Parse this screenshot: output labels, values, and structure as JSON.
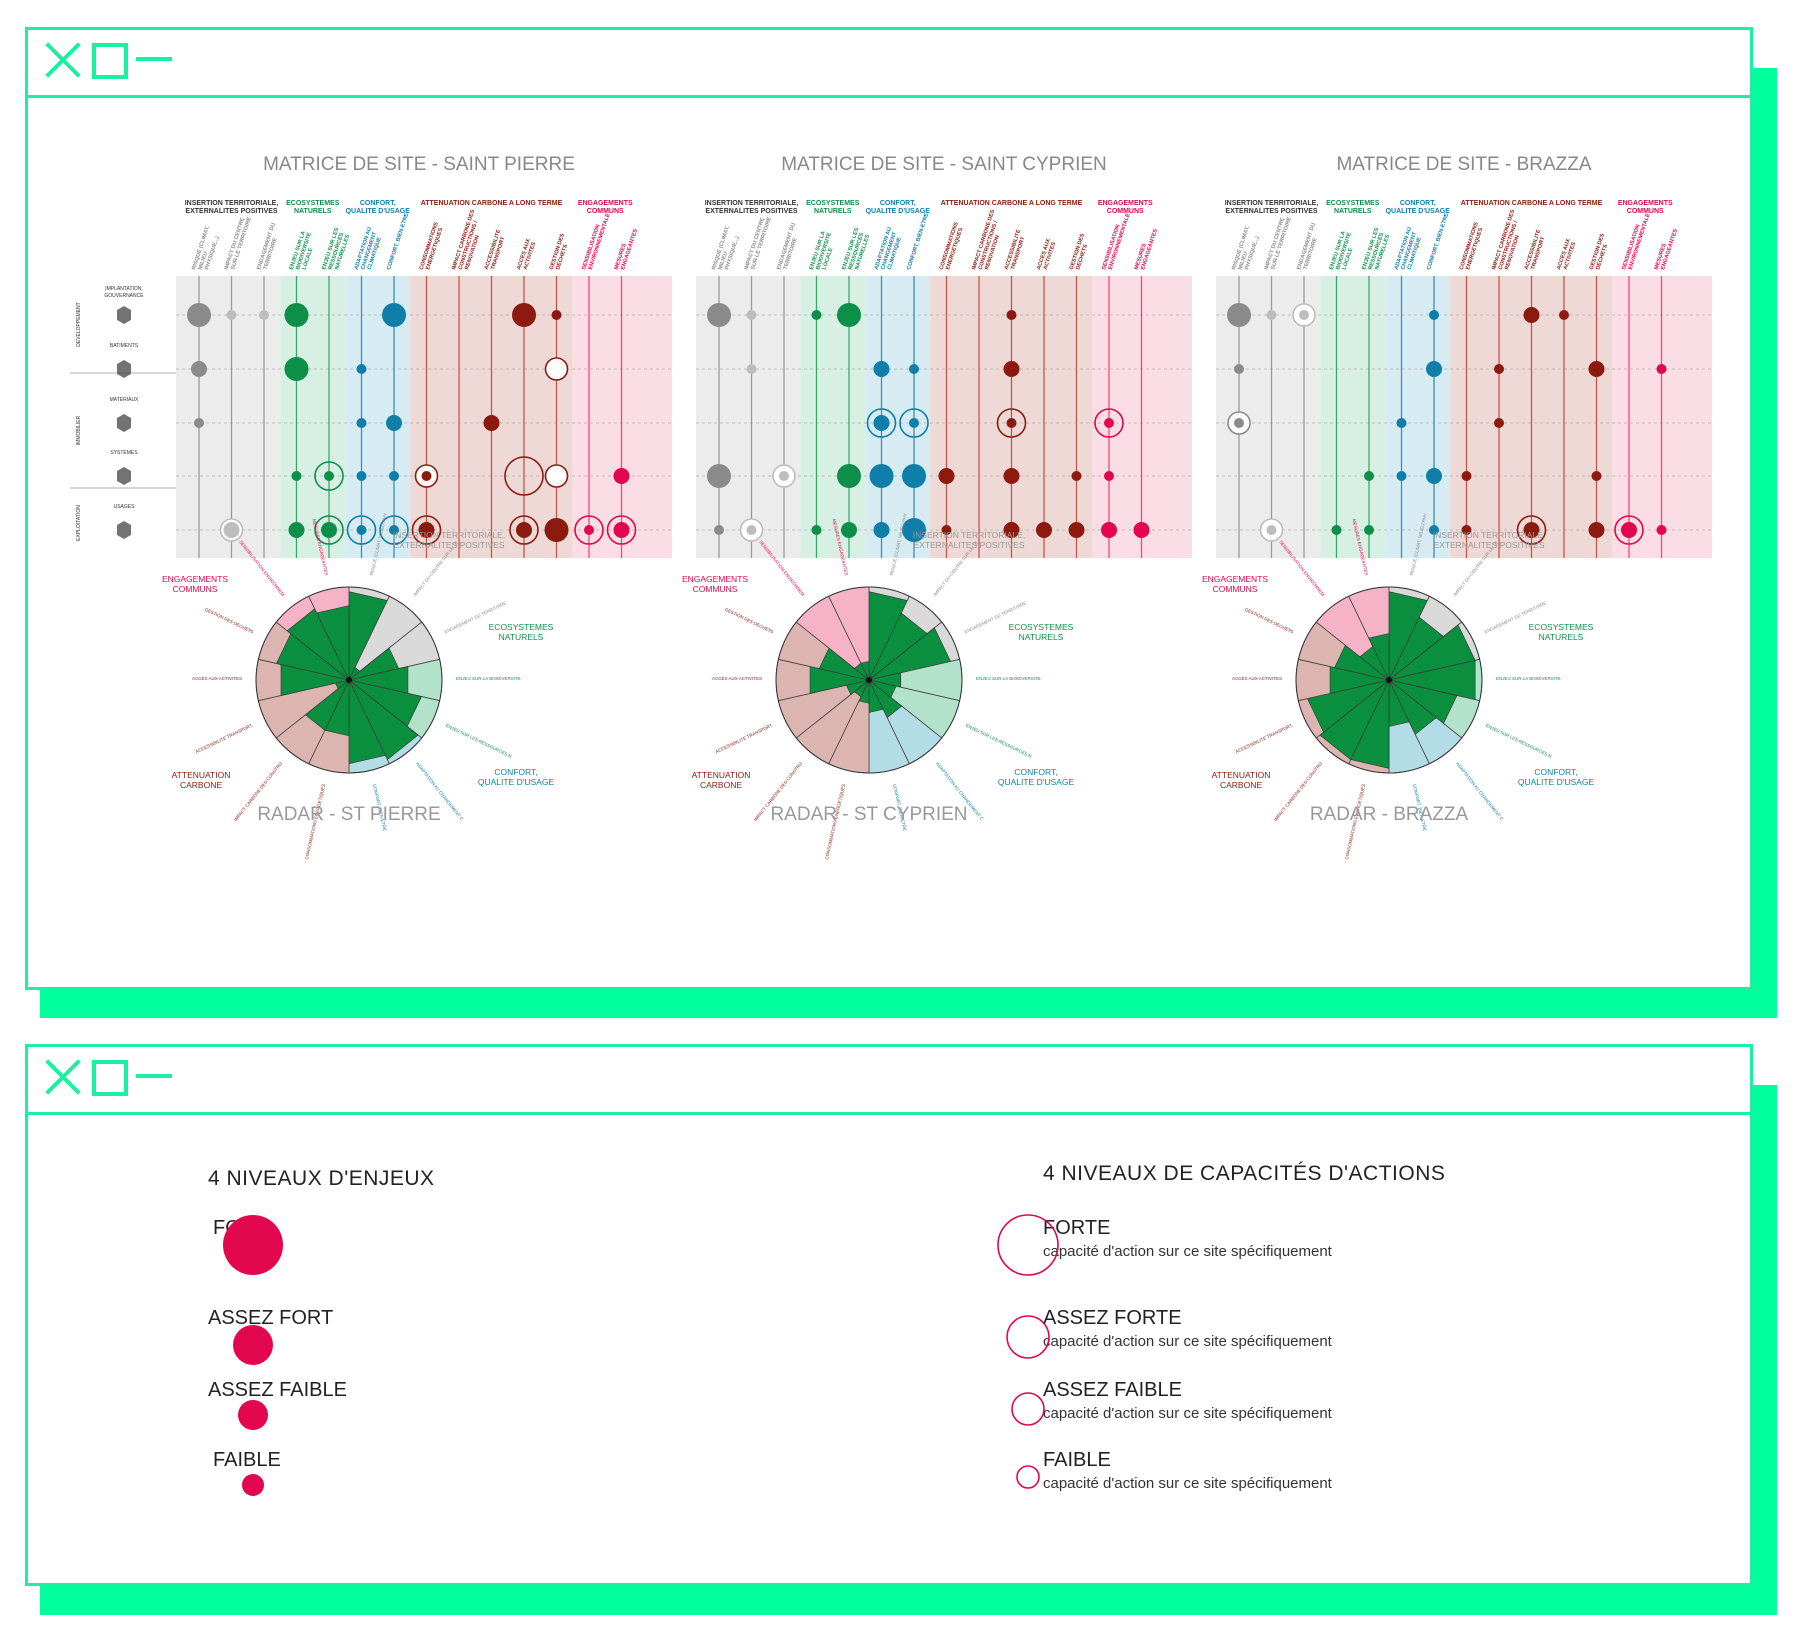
{
  "colors": {
    "accent": "#19f0a0",
    "grey": "#8a8a8a",
    "lightgrey": "#bdbdbd",
    "green": "#0d8f49",
    "blue": "#0f7ea8",
    "darkred": "#8c1a0f",
    "red": "#e2064f",
    "bg_grey": "#ececec",
    "bg_green": "#d8efe3",
    "bg_blue": "#d6ecf2",
    "bg_red": "#eed9d6",
    "bg_pink": "#fbdde6",
    "legend": "#e2064f"
  },
  "windows": [
    {
      "name": "window-matrices",
      "icons": [
        "close-icon",
        "maximize-icon",
        "minimize-icon"
      ]
    },
    {
      "name": "window-legend",
      "icons": [
        "close-icon",
        "maximize-icon",
        "minimize-icon"
      ]
    }
  ],
  "categories": [
    {
      "label": "INSERTION TERRITORIALE,\nEXTERNALITES POSITIVES",
      "color": "#333333"
    },
    {
      "label": "ECOSYSTEMES\nNATURELS",
      "color": "#0d8f49"
    },
    {
      "label": "CONFORT,\nQUALITE D'USAGE",
      "color": "#0f7ea8"
    },
    {
      "label": "ATTENUATION CARBONE A LONG TERME",
      "color": "#8c1a0f"
    },
    {
      "label": "ENGAGEMENTS\nCOMMUNS",
      "color": "#e2064f"
    }
  ],
  "columns": [
    {
      "label": "RISQUE (CLIMAT, MILIEU PHYSIQUE...)",
      "cat": 0
    },
    {
      "label": "IMPACT DU CENTRE SUR LE TERRITOIRE",
      "cat": 0
    },
    {
      "label": "ENGAGEMENT DU TERRITOIRE",
      "cat": 0
    },
    {
      "label": "ENJEU SUR LA BIODIVERSITE LOCALE",
      "cat": 1
    },
    {
      "label": "ENJEU SUR LES RESSOURCES NATURELLES",
      "cat": 1
    },
    {
      "label": "ADAPTATION AU CHANGEMENT CLIMATIQUE",
      "cat": 2
    },
    {
      "label": "CONFORT, BIEN-ETRE",
      "cat": 2
    },
    {
      "label": "CONSOMMATIONS ENERGETIQUES",
      "cat": 3
    },
    {
      "label": "IMPACT CARBONE DES CONSTRUCTIONS / RENOVATION",
      "cat": 3
    },
    {
      "label": "ACCESSIBILITE TRANSPORT",
      "cat": 3
    },
    {
      "label": "ACCES AUX ACTIVITES",
      "cat": 3
    },
    {
      "label": "GESTION DES DECHETS",
      "cat": 3
    },
    {
      "label": "SENSIBILISATION ENVIRONNEMENTALE",
      "cat": 4
    },
    {
      "label": "MESURES ENGAGEANTES",
      "cat": 4
    }
  ],
  "row_groups": [
    {
      "label": "DEVELOPPEMENT",
      "rows": [
        0
      ]
    },
    {
      "label": "IMMOBILIER",
      "rows": [
        1,
        2,
        3
      ]
    },
    {
      "label": "EXPLOITATION",
      "rows": [
        4
      ]
    }
  ],
  "rows": [
    {
      "label": "IMPLANTATION, GOUVERNANCE",
      "icon": "network-icon"
    },
    {
      "label": "BATIMENTS",
      "icon": "building-icon"
    },
    {
      "label": "MATERIAUX",
      "icon": "materials-icon"
    },
    {
      "label": "SYSTEMES",
      "icon": "systems-icon"
    },
    {
      "label": "USAGES",
      "icon": "usage-icon"
    }
  ],
  "matrices": [
    {
      "title": "MATRICE DE SITE - SAINT PIERRE",
      "dots": [
        [
          0,
          0,
          3,
          0
        ],
        [
          0,
          1,
          1,
          0
        ],
        [
          0,
          2,
          1,
          0
        ],
        [
          0,
          3,
          3,
          0
        ],
        [
          0,
          6,
          3,
          0
        ],
        [
          0,
          10,
          3,
          0
        ],
        [
          0,
          11,
          1,
          0
        ],
        [
          1,
          0,
          2,
          0
        ],
        [
          1,
          3,
          3,
          0
        ],
        [
          1,
          5,
          1,
          0
        ],
        [
          1,
          11,
          0,
          2
        ],
        [
          2,
          0,
          1,
          0
        ],
        [
          2,
          5,
          1,
          0
        ],
        [
          2,
          6,
          2,
          0
        ],
        [
          2,
          9,
          2,
          0
        ],
        [
          3,
          3,
          1,
          0
        ],
        [
          3,
          4,
          1,
          3
        ],
        [
          3,
          5,
          1,
          0
        ],
        [
          3,
          6,
          1,
          0
        ],
        [
          3,
          7,
          1,
          2
        ],
        [
          3,
          10,
          0,
          4
        ],
        [
          3,
          11,
          0,
          2
        ],
        [
          3,
          13,
          2,
          0
        ],
        [
          4,
          1,
          2,
          2
        ],
        [
          4,
          3,
          2,
          0
        ],
        [
          4,
          4,
          2,
          3
        ],
        [
          4,
          5,
          1,
          3
        ],
        [
          4,
          6,
          1,
          3
        ],
        [
          4,
          7,
          2,
          3
        ],
        [
          4,
          10,
          2,
          3
        ],
        [
          4,
          11,
          3,
          0
        ],
        [
          4,
          12,
          1,
          3
        ],
        [
          4,
          13,
          2,
          3
        ]
      ],
      "radar_title": "RADAR - ST PIERRE",
      "radar_values": [
        0.95,
        0.15,
        0.55,
        0.65,
        0.8,
        0.95,
        0.9,
        0.6,
        0.6,
        0.15,
        0.75,
        0.8,
        0.85,
        0.8
      ]
    },
    {
      "title": "MATRICE DE SITE - SAINT CYPRIEN",
      "dots": [
        [
          0,
          0,
          3,
          0
        ],
        [
          0,
          1,
          1,
          0
        ],
        [
          0,
          3,
          1,
          0
        ],
        [
          0,
          4,
          3,
          0
        ],
        [
          0,
          9,
          1,
          0
        ],
        [
          1,
          1,
          1,
          0
        ],
        [
          1,
          5,
          2,
          0
        ],
        [
          1,
          6,
          1,
          0
        ],
        [
          1,
          9,
          2,
          0
        ],
        [
          2,
          5,
          2,
          3
        ],
        [
          2,
          6,
          1,
          3
        ],
        [
          2,
          9,
          1,
          3
        ],
        [
          2,
          12,
          1,
          3
        ],
        [
          3,
          0,
          3,
          0
        ],
        [
          3,
          2,
          1,
          2
        ],
        [
          3,
          4,
          3,
          0
        ],
        [
          3,
          5,
          3,
          0
        ],
        [
          3,
          6,
          3,
          0
        ],
        [
          3,
          7,
          2,
          0
        ],
        [
          3,
          9,
          2,
          0
        ],
        [
          3,
          11,
          1,
          0
        ],
        [
          3,
          12,
          1,
          0
        ],
        [
          4,
          0,
          1,
          0
        ],
        [
          4,
          1,
          1,
          2
        ],
        [
          4,
          3,
          1,
          0
        ],
        [
          4,
          4,
          2,
          0
        ],
        [
          4,
          5,
          2,
          0
        ],
        [
          4,
          6,
          3,
          0
        ],
        [
          4,
          7,
          1,
          0
        ],
        [
          4,
          9,
          2,
          0
        ],
        [
          4,
          10,
          2,
          0
        ],
        [
          4,
          11,
          2,
          0
        ],
        [
          4,
          12,
          2,
          0
        ],
        [
          4,
          13,
          2,
          0
        ]
      ],
      "radar_title": "RADAR - ST CYPRIEN",
      "radar_values": [
        0.95,
        0.8,
        0.9,
        0.35,
        0.3,
        0.45,
        0.35,
        0.25,
        0.2,
        0.25,
        0.65,
        0.55,
        0.2,
        0.2
      ]
    },
    {
      "title": "MATRICE DE SITE -  BRAZZA",
      "dots": [
        [
          0,
          0,
          3,
          0
        ],
        [
          0,
          1,
          1,
          0
        ],
        [
          0,
          2,
          1,
          2
        ],
        [
          0,
          6,
          1,
          0
        ],
        [
          0,
          9,
          2,
          0
        ],
        [
          0,
          10,
          1,
          0
        ],
        [
          1,
          0,
          1,
          0
        ],
        [
          1,
          6,
          2,
          0
        ],
        [
          1,
          8,
          1,
          0
        ],
        [
          1,
          11,
          2,
          0
        ],
        [
          1,
          13,
          1,
          0
        ],
        [
          2,
          0,
          1,
          2
        ],
        [
          2,
          5,
          1,
          0
        ],
        [
          2,
          8,
          1,
          0
        ],
        [
          3,
          4,
          1,
          0
        ],
        [
          3,
          5,
          1,
          0
        ],
        [
          3,
          6,
          2,
          0
        ],
        [
          3,
          7,
          1,
          0
        ],
        [
          3,
          11,
          1,
          0
        ],
        [
          4,
          1,
          1,
          2
        ],
        [
          4,
          3,
          1,
          0
        ],
        [
          4,
          4,
          1,
          0
        ],
        [
          4,
          6,
          1,
          0
        ],
        [
          4,
          7,
          1,
          0
        ],
        [
          4,
          9,
          2,
          3
        ],
        [
          4,
          11,
          2,
          0
        ],
        [
          4,
          12,
          2,
          3
        ],
        [
          4,
          13,
          1,
          0
        ]
      ],
      "radar_title": "RADAR - BRAZZA",
      "radar_values": [
        0.95,
        0.75,
        0.95,
        0.95,
        0.75,
        0.65,
        0.5,
        0.95,
        0.95,
        0.9,
        0.65,
        0.6,
        0.4,
        0.5
      ]
    }
  ],
  "radar_labels": {
    "insertion": "INSERTION TERRITORIALE,\nEXTERNALITES POSITIVES",
    "ecosystemes": "ECOSYSTEMES\nNATURELS",
    "confort": "CONFORT,\nQUALITE D'USAGE",
    "attenuation": "ATTENUATION\nCARBONE",
    "engagements": "ENGAGEMENTS\nCOMMUNS"
  },
  "legend": {
    "enjeux_title": "4 NIVEAUX D'ENJEUX",
    "enjeux": [
      {
        "label": "FORT",
        "level": 4
      },
      {
        "label": "ASSEZ FORT",
        "level": 3
      },
      {
        "label": "ASSEZ FAIBLE",
        "level": 2
      },
      {
        "label": "FAIBLE",
        "level": 1
      }
    ],
    "capacites_title": "4 NIVEAUX DE CAPACITÉS D'ACTIONS",
    "capacites": [
      {
        "label": "FORTE",
        "sub": "capacité d'action sur ce  site spécifiquement",
        "level": 4
      },
      {
        "label": "ASSEZ  FORTE",
        "sub": "capacité d'action sur ce  site spécifiquement",
        "level": 3
      },
      {
        "label": "ASSEZ FAIBLE",
        "sub": "capacité d'action sur ce  site spécifiquement",
        "level": 2
      },
      {
        "label": "FAIBLE",
        "sub": "capacité d'action sur ce  site spécifiquement",
        "level": 1
      }
    ]
  }
}
